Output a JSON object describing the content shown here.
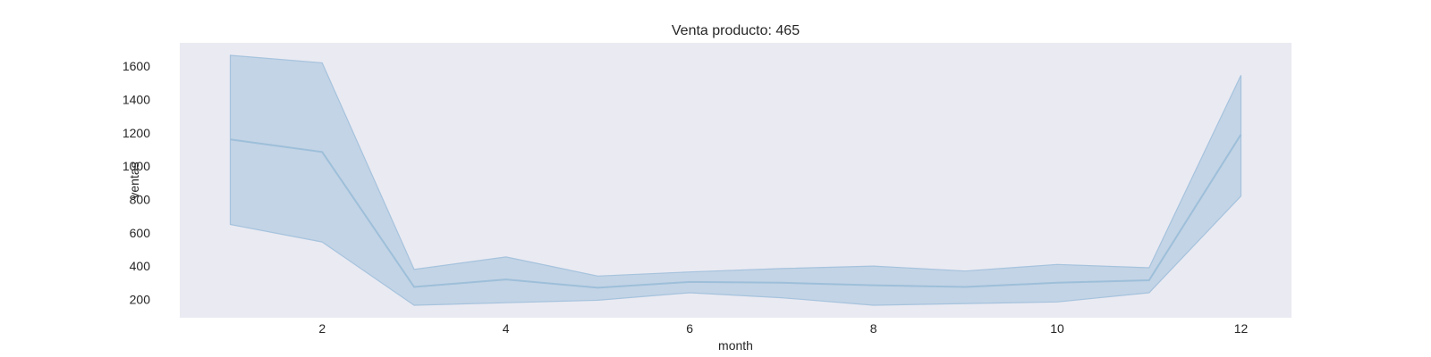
{
  "chart_data": {
    "type": "line",
    "title": "Venta producto: 465",
    "xlabel": "month",
    "ylabel": "ventas",
    "xlim": [
      0.45,
      12.55
    ],
    "ylim": [
      90,
      1740
    ],
    "xticks": [
      2,
      4,
      6,
      8,
      10,
      12
    ],
    "yticks": [
      200,
      400,
      600,
      800,
      1000,
      1200,
      1400,
      1600
    ],
    "grid": false,
    "legend": "none",
    "colors": {
      "plot_background": "#eaeaf2",
      "line": "#9ebfd9",
      "band_fill": "#a9c4de",
      "band_edge": "#a6c3dd"
    },
    "series": [
      {
        "x": [
          1,
          2,
          3,
          4,
          5,
          6,
          7,
          8,
          9,
          10,
          11,
          12
        ],
        "values": [
          1160,
          1085,
          275,
          320,
          270,
          305,
          300,
          285,
          275,
          300,
          315,
          1190
        ],
        "lower": [
          650,
          545,
          165,
          180,
          195,
          240,
          210,
          165,
          175,
          185,
          240,
          820
        ],
        "upper": [
          1665,
          1620,
          380,
          455,
          340,
          365,
          385,
          400,
          370,
          410,
          390,
          1545
        ]
      }
    ]
  }
}
